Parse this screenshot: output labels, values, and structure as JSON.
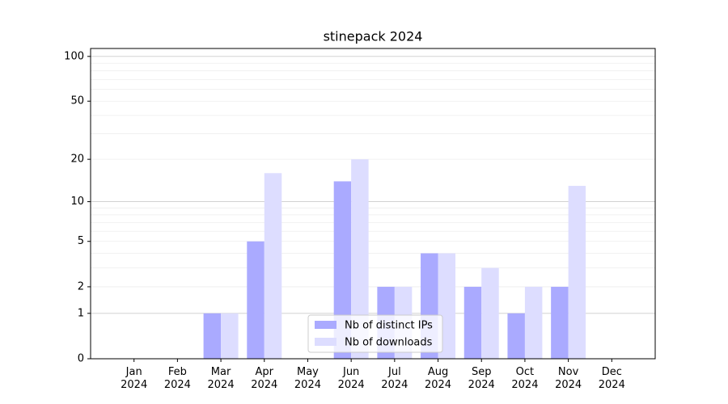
{
  "chart_data": {
    "type": "bar",
    "title": "stinepack 2024",
    "categories": [
      "Jan\n2024",
      "Feb\n2024",
      "Mar\n2024",
      "Apr\n2024",
      "May\n2024",
      "Jun\n2024",
      "Jul\n2024",
      "Aug\n2024",
      "Sep\n2024",
      "Oct\n2024",
      "Nov\n2024",
      "Dec\n2024"
    ],
    "series": [
      {
        "name": "Nb of distinct IPs",
        "color": "#aaaaff",
        "values": [
          0,
          0,
          1,
          5,
          0,
          14,
          2,
          4,
          2,
          1,
          2,
          0
        ]
      },
      {
        "name": "Nb of downloads",
        "color": "#ddddff",
        "values": [
          0,
          0,
          1,
          16,
          0,
          20,
          2,
          4,
          3,
          2,
          13,
          0
        ]
      }
    ],
    "yscale": "log1p",
    "ylim": [
      0,
      113
    ],
    "yticks": [
      0,
      1,
      2,
      5,
      10,
      20,
      50,
      100
    ],
    "major_grid": [
      1,
      10,
      100
    ],
    "minor_grid": [
      2,
      3,
      4,
      5,
      6,
      7,
      8,
      9,
      20,
      30,
      40,
      50,
      60,
      70,
      80,
      90
    ],
    "grid": true,
    "legend": "lower center"
  }
}
